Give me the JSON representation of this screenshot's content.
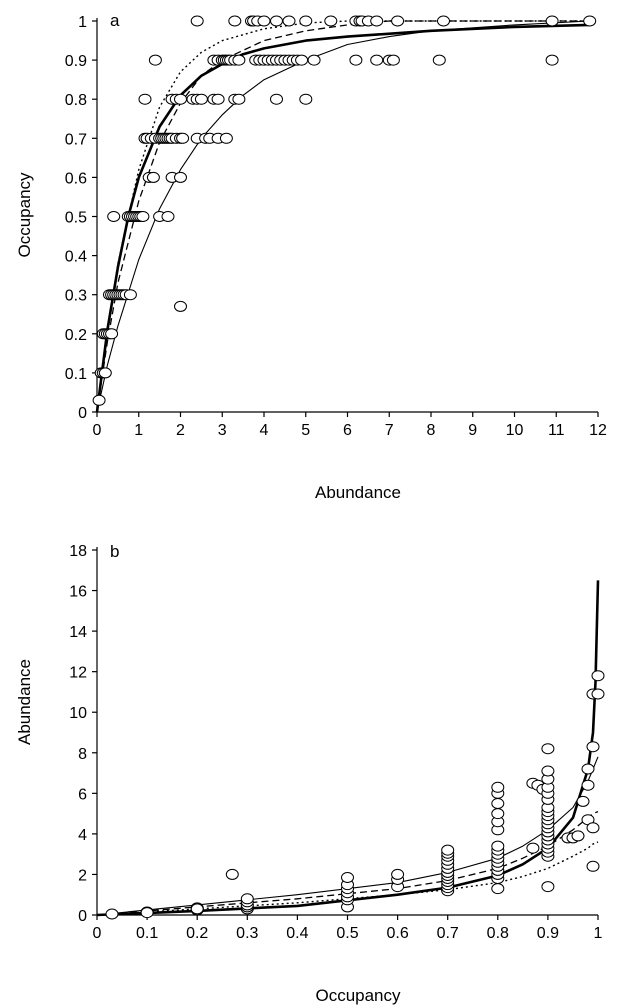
{
  "chart_data": [
    {
      "panel": "a",
      "type": "scatter",
      "xlabel": "Abundance",
      "ylabel": "Occupancy",
      "xlim": [
        0,
        12
      ],
      "ylim": [
        0,
        1
      ],
      "xticks": [
        0,
        1,
        2,
        3,
        4,
        5,
        6,
        7,
        8,
        9,
        10,
        11,
        12
      ],
      "yticks": [
        0,
        0.1,
        0.2,
        0.3,
        0.4,
        0.5,
        0.6,
        0.7,
        0.8,
        0.9,
        1
      ],
      "grid": false,
      "points": [
        [
          0.05,
          0.03
        ],
        [
          0.1,
          0.1
        ],
        [
          0.15,
          0.1
        ],
        [
          0.2,
          0.1
        ],
        [
          0.15,
          0.2
        ],
        [
          0.2,
          0.2
        ],
        [
          0.25,
          0.2
        ],
        [
          0.3,
          0.2
        ],
        [
          0.35,
          0.2
        ],
        [
          0.3,
          0.3
        ],
        [
          0.35,
          0.3
        ],
        [
          0.4,
          0.3
        ],
        [
          0.45,
          0.3
        ],
        [
          0.5,
          0.3
        ],
        [
          0.55,
          0.3
        ],
        [
          0.6,
          0.3
        ],
        [
          0.65,
          0.3
        ],
        [
          0.7,
          0.3
        ],
        [
          0.8,
          0.3
        ],
        [
          0.4,
          0.5
        ],
        [
          0.75,
          0.5
        ],
        [
          0.8,
          0.5
        ],
        [
          0.85,
          0.5
        ],
        [
          0.9,
          0.5
        ],
        [
          0.95,
          0.5
        ],
        [
          1.0,
          0.5
        ],
        [
          1.05,
          0.5
        ],
        [
          1.1,
          0.5
        ],
        [
          1.5,
          0.5
        ],
        [
          1.7,
          0.5
        ],
        [
          1.25,
          0.6
        ],
        [
          1.35,
          0.6
        ],
        [
          1.8,
          0.6
        ],
        [
          2.0,
          0.6
        ],
        [
          1.15,
          0.7
        ],
        [
          1.2,
          0.7
        ],
        [
          1.3,
          0.7
        ],
        [
          1.4,
          0.7
        ],
        [
          1.5,
          0.7
        ],
        [
          1.55,
          0.7
        ],
        [
          1.6,
          0.7
        ],
        [
          1.65,
          0.7
        ],
        [
          1.7,
          0.7
        ],
        [
          1.75,
          0.7
        ],
        [
          1.8,
          0.7
        ],
        [
          1.9,
          0.7
        ],
        [
          2.0,
          0.7
        ],
        [
          2.05,
          0.7
        ],
        [
          2.4,
          0.7
        ],
        [
          2.6,
          0.7
        ],
        [
          2.7,
          0.7
        ],
        [
          2.9,
          0.7
        ],
        [
          3.1,
          0.7
        ],
        [
          1.15,
          0.8
        ],
        [
          1.8,
          0.8
        ],
        [
          1.9,
          0.8
        ],
        [
          2.0,
          0.8
        ],
        [
          2.3,
          0.8
        ],
        [
          2.4,
          0.8
        ],
        [
          2.5,
          0.8
        ],
        [
          2.8,
          0.8
        ],
        [
          2.9,
          0.8
        ],
        [
          3.3,
          0.8
        ],
        [
          3.4,
          0.8
        ],
        [
          4.3,
          0.8
        ],
        [
          5.0,
          0.8
        ],
        [
          1.4,
          0.9
        ],
        [
          2.8,
          0.9
        ],
        [
          2.9,
          0.9
        ],
        [
          3.0,
          0.9
        ],
        [
          3.05,
          0.9
        ],
        [
          3.1,
          0.9
        ],
        [
          3.15,
          0.9
        ],
        [
          3.2,
          0.9
        ],
        [
          3.3,
          0.9
        ],
        [
          3.4,
          0.9
        ],
        [
          3.8,
          0.9
        ],
        [
          3.9,
          0.9
        ],
        [
          4.0,
          0.9
        ],
        [
          4.1,
          0.9
        ],
        [
          4.2,
          0.9
        ],
        [
          4.3,
          0.9
        ],
        [
          4.4,
          0.9
        ],
        [
          4.5,
          0.9
        ],
        [
          4.6,
          0.9
        ],
        [
          4.7,
          0.9
        ],
        [
          4.8,
          0.9
        ],
        [
          4.9,
          0.9
        ],
        [
          5.2,
          0.9
        ],
        [
          6.2,
          0.9
        ],
        [
          6.7,
          0.9
        ],
        [
          7.0,
          0.9
        ],
        [
          7.1,
          0.9
        ],
        [
          8.2,
          0.9
        ],
        [
          10.9,
          0.9
        ],
        [
          2.4,
          1.0
        ],
        [
          3.3,
          1.0
        ],
        [
          3.7,
          1.0
        ],
        [
          3.75,
          1.0
        ],
        [
          3.85,
          1.0
        ],
        [
          4.0,
          1.0
        ],
        [
          4.3,
          1.0
        ],
        [
          4.6,
          1.0
        ],
        [
          5.0,
          1.0
        ],
        [
          5.6,
          1.0
        ],
        [
          6.2,
          1.0
        ],
        [
          6.3,
          1.0
        ],
        [
          6.35,
          1.0
        ],
        [
          6.5,
          1.0
        ],
        [
          6.7,
          1.0
        ],
        [
          7.2,
          1.0
        ],
        [
          8.3,
          1.0
        ],
        [
          10.9,
          1.0
        ],
        [
          11.8,
          1.0
        ],
        [
          2.0,
          0.27
        ]
      ],
      "curves": [
        {
          "style": "thick-solid",
          "x": [
            0,
            0.25,
            0.5,
            0.75,
            1,
            1.5,
            2,
            2.5,
            3,
            3.5,
            4,
            5,
            6,
            8,
            10,
            11.8
          ],
          "y": [
            0,
            0.21,
            0.37,
            0.5,
            0.6,
            0.73,
            0.81,
            0.86,
            0.89,
            0.915,
            0.93,
            0.95,
            0.96,
            0.975,
            0.985,
            0.99
          ]
        },
        {
          "style": "thin-solid",
          "x": [
            0,
            0.25,
            0.5,
            1,
            1.5,
            2,
            2.5,
            3,
            3.5,
            4,
            5,
            6,
            7,
            8,
            10,
            11.8
          ],
          "y": [
            0,
            0.12,
            0.22,
            0.39,
            0.52,
            0.62,
            0.7,
            0.76,
            0.81,
            0.85,
            0.9,
            0.94,
            0.96,
            0.975,
            0.99,
            1.0
          ]
        },
        {
          "style": "dashed",
          "x": [
            0,
            0.25,
            0.5,
            1,
            1.5,
            2,
            2.5,
            3,
            4,
            5,
            6,
            7,
            8,
            10,
            11.8
          ],
          "y": [
            0,
            0.18,
            0.33,
            0.54,
            0.69,
            0.79,
            0.86,
            0.9,
            0.95,
            0.975,
            0.99,
            1.0,
            1.0,
            1.0,
            1.0
          ]
        },
        {
          "style": "dotted",
          "x": [
            0,
            0.25,
            0.5,
            1,
            1.5,
            2,
            2.5,
            3,
            4,
            5,
            6,
            8,
            10,
            11.8
          ],
          "y": [
            0,
            0.2,
            0.38,
            0.62,
            0.78,
            0.87,
            0.92,
            0.95,
            0.98,
            0.995,
            1.0,
            1.0,
            1.0,
            1.0
          ]
        }
      ]
    },
    {
      "panel": "b",
      "type": "scatter",
      "xlabel": "Occupancy",
      "ylabel": "Abundance",
      "xlim": [
        0,
        1
      ],
      "ylim": [
        0,
        18
      ],
      "xticks": [
        0,
        0.1,
        0.2,
        0.3,
        0.4,
        0.5,
        0.6,
        0.7,
        0.8,
        0.9,
        1
      ],
      "yticks": [
        0,
        2,
        4,
        6,
        8,
        10,
        12,
        14,
        16,
        18
      ],
      "grid": false,
      "points": [
        [
          0.03,
          0.05
        ],
        [
          0.1,
          0.15
        ],
        [
          0.1,
          0.12
        ],
        [
          0.2,
          0.25
        ],
        [
          0.2,
          0.35
        ],
        [
          0.2,
          0.3
        ],
        [
          0.27,
          2.0
        ],
        [
          0.3,
          0.3
        ],
        [
          0.3,
          0.4
        ],
        [
          0.3,
          0.5
        ],
        [
          0.3,
          0.65
        ],
        [
          0.3,
          0.8
        ],
        [
          0.5,
          0.4
        ],
        [
          0.5,
          0.75
        ],
        [
          0.5,
          0.9
        ],
        [
          0.5,
          1.1
        ],
        [
          0.5,
          1.3
        ],
        [
          0.5,
          1.5
        ],
        [
          0.5,
          1.85
        ],
        [
          0.6,
          1.4
        ],
        [
          0.6,
          1.75
        ],
        [
          0.6,
          2.0
        ],
        [
          0.7,
          1.2
        ],
        [
          0.7,
          1.35
        ],
        [
          0.7,
          1.5
        ],
        [
          0.7,
          1.65
        ],
        [
          0.7,
          1.8
        ],
        [
          0.7,
          1.95
        ],
        [
          0.7,
          2.1
        ],
        [
          0.7,
          2.3
        ],
        [
          0.7,
          2.5
        ],
        [
          0.7,
          2.7
        ],
        [
          0.7,
          2.9
        ],
        [
          0.7,
          3.05
        ],
        [
          0.7,
          3.2
        ],
        [
          0.8,
          1.3
        ],
        [
          0.8,
          1.8
        ],
        [
          0.8,
          2.0
        ],
        [
          0.8,
          2.2
        ],
        [
          0.8,
          2.4
        ],
        [
          0.8,
          2.6
        ],
        [
          0.8,
          2.8
        ],
        [
          0.8,
          3.0
        ],
        [
          0.8,
          3.2
        ],
        [
          0.8,
          3.4
        ],
        [
          0.8,
          4.2
        ],
        [
          0.8,
          4.6
        ],
        [
          0.8,
          5.0
        ],
        [
          0.8,
          5.5
        ],
        [
          0.8,
          6.0
        ],
        [
          0.8,
          6.3
        ],
        [
          0.87,
          3.3
        ],
        [
          0.87,
          6.5
        ],
        [
          0.88,
          6.4
        ],
        [
          0.89,
          6.2
        ],
        [
          0.9,
          1.4
        ],
        [
          0.9,
          2.9
        ],
        [
          0.9,
          3.1
        ],
        [
          0.9,
          3.3
        ],
        [
          0.9,
          3.5
        ],
        [
          0.9,
          3.7
        ],
        [
          0.9,
          3.9
        ],
        [
          0.9,
          4.1
        ],
        [
          0.9,
          4.3
        ],
        [
          0.9,
          4.5
        ],
        [
          0.9,
          4.7
        ],
        [
          0.9,
          4.9
        ],
        [
          0.9,
          5.1
        ],
        [
          0.9,
          5.3
        ],
        [
          0.9,
          5.7
        ],
        [
          0.9,
          6.0
        ],
        [
          0.9,
          6.3
        ],
        [
          0.9,
          6.7
        ],
        [
          0.9,
          7.1
        ],
        [
          0.9,
          8.2
        ],
        [
          0.94,
          3.8
        ],
        [
          0.95,
          3.8
        ],
        [
          0.96,
          3.9
        ],
        [
          0.97,
          5.6
        ],
        [
          0.98,
          4.7
        ],
        [
          0.98,
          6.4
        ],
        [
          0.98,
          7.2
        ],
        [
          0.99,
          2.4
        ],
        [
          0.99,
          4.3
        ],
        [
          0.99,
          8.3
        ],
        [
          0.99,
          10.9
        ],
        [
          1.0,
          11.8
        ],
        [
          1.0,
          10.9
        ]
      ],
      "curves": [
        {
          "style": "thick-solid",
          "x": [
            0,
            0.2,
            0.4,
            0.6,
            0.7,
            0.8,
            0.85,
            0.9,
            0.95,
            0.98,
            0.99,
            0.995,
            1.0
          ],
          "y": [
            0,
            0.2,
            0.45,
            1.0,
            1.35,
            1.95,
            2.5,
            3.3,
            4.8,
            7.2,
            9.0,
            11.5,
            16.5
          ]
        },
        {
          "style": "thin-solid",
          "x": [
            0,
            0.2,
            0.4,
            0.6,
            0.7,
            0.8,
            0.85,
            0.9,
            0.95,
            0.98,
            0.99,
            1.0
          ],
          "y": [
            0,
            0.5,
            1.0,
            1.6,
            2.1,
            2.8,
            3.4,
            4.2,
            5.3,
            6.6,
            7.2,
            7.8
          ]
        },
        {
          "style": "dashed",
          "x": [
            0,
            0.2,
            0.4,
            0.6,
            0.7,
            0.8,
            0.85,
            0.9,
            0.95,
            0.98,
            0.99,
            1.0
          ],
          "y": [
            0,
            0.4,
            0.8,
            1.3,
            1.7,
            2.3,
            2.8,
            3.4,
            4.2,
            4.8,
            5.0,
            5.1
          ]
        },
        {
          "style": "dotted",
          "x": [
            0,
            0.2,
            0.4,
            0.6,
            0.7,
            0.8,
            0.85,
            0.9,
            0.95,
            0.98,
            0.99,
            1.0
          ],
          "y": [
            0,
            0.3,
            0.6,
            1.0,
            1.25,
            1.6,
            1.9,
            2.3,
            2.9,
            3.3,
            3.5,
            3.6
          ]
        }
      ]
    }
  ]
}
